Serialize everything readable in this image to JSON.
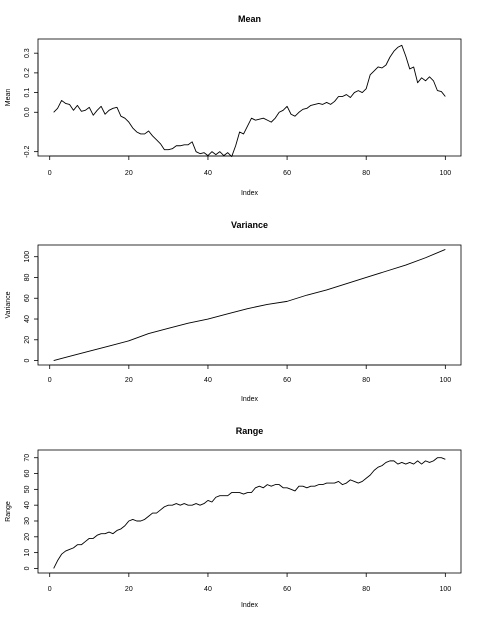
{
  "chart_data": [
    {
      "type": "line",
      "title": "Mean",
      "xlabel": "Index",
      "ylabel": "Mean",
      "xlim": [
        1,
        100
      ],
      "ylim": [
        -0.2,
        0.35
      ],
      "xticks": [
        0,
        20,
        40,
        60,
        80,
        100
      ],
      "yticks": [
        -0.2,
        0.0,
        0.1,
        0.2,
        0.3
      ],
      "ytick_labels": [
        "-0.2",
        "0.0",
        "0.1",
        "0.2",
        "0.3"
      ],
      "x": [
        1,
        2,
        3,
        4,
        5,
        6,
        7,
        8,
        9,
        10,
        11,
        12,
        13,
        14,
        15,
        16,
        17,
        18,
        19,
        20,
        21,
        22,
        23,
        24,
        25,
        26,
        27,
        28,
        29,
        30,
        31,
        32,
        33,
        34,
        35,
        36,
        37,
        38,
        39,
        40,
        41,
        42,
        43,
        44,
        45,
        46,
        47,
        48,
        49,
        50,
        51,
        52,
        53,
        54,
        55,
        56,
        57,
        58,
        59,
        60,
        61,
        62,
        63,
        64,
        65,
        66,
        67,
        68,
        69,
        70,
        71,
        72,
        73,
        74,
        75,
        76,
        77,
        78,
        79,
        80,
        81,
        82,
        83,
        84,
        85,
        86,
        87,
        88,
        89,
        90,
        91,
        92,
        93,
        94,
        95,
        96,
        97,
        98,
        99,
        100
      ],
      "y": [
        0.0,
        0.02,
        0.06,
        0.045,
        0.04,
        0.01,
        0.035,
        0.005,
        0.01,
        0.025,
        -0.015,
        0.01,
        0.03,
        -0.01,
        0.01,
        0.02,
        0.025,
        -0.02,
        -0.03,
        -0.05,
        -0.08,
        -0.1,
        -0.11,
        -0.11,
        -0.095,
        -0.12,
        -0.14,
        -0.16,
        -0.19,
        -0.19,
        -0.185,
        -0.17,
        -0.17,
        -0.165,
        -0.165,
        -0.15,
        -0.2,
        -0.21,
        -0.205,
        -0.22,
        -0.2,
        -0.215,
        -0.2,
        -0.22,
        -0.205,
        -0.225,
        -0.17,
        -0.1,
        -0.11,
        -0.07,
        -0.03,
        -0.04,
        -0.035,
        -0.03,
        -0.04,
        -0.05,
        -0.03,
        0.0,
        0.01,
        0.03,
        -0.01,
        -0.02,
        0.0,
        0.015,
        0.02,
        0.035,
        0.04,
        0.045,
        0.04,
        0.05,
        0.04,
        0.055,
        0.08,
        0.08,
        0.09,
        0.075,
        0.1,
        0.11,
        0.1,
        0.12,
        0.19,
        0.21,
        0.23,
        0.225,
        0.24,
        0.28,
        0.31,
        0.33,
        0.34,
        0.285,
        0.22,
        0.23,
        0.15,
        0.175,
        0.16,
        0.18,
        0.16,
        0.11,
        0.105,
        0.08
      ]
    },
    {
      "type": "line",
      "title": "Variance",
      "xlabel": "Index",
      "ylabel": "Variance",
      "xlim": [
        1,
        100
      ],
      "ylim": [
        0,
        107
      ],
      "xticks": [
        0,
        20,
        40,
        60,
        80,
        100
      ],
      "yticks": [
        0,
        20,
        40,
        60,
        80,
        100
      ],
      "ytick_labels": [
        "0",
        "20",
        "40",
        "60",
        "80",
        "100"
      ],
      "x": [
        1,
        3,
        6,
        10,
        15,
        20,
        25,
        30,
        35,
        40,
        45,
        50,
        55,
        60,
        65,
        70,
        75,
        80,
        85,
        90,
        95,
        100
      ],
      "y": [
        0,
        2,
        5,
        9,
        14,
        19,
        26,
        31,
        36,
        40,
        45,
        50,
        54,
        57,
        63,
        68,
        74,
        80,
        86,
        92,
        99,
        107
      ]
    },
    {
      "type": "line",
      "title": "Range",
      "xlabel": "Index",
      "ylabel": "Range",
      "xlim": [
        1,
        100
      ],
      "ylim": [
        0,
        72
      ],
      "xticks": [
        0,
        20,
        40,
        60,
        80,
        100
      ],
      "yticks": [
        0,
        10,
        20,
        30,
        40,
        50,
        60,
        70
      ],
      "ytick_labels": [
        "0",
        "10",
        "20",
        "30",
        "40",
        "50",
        "60",
        "70"
      ],
      "x": [
        1,
        2,
        3,
        4,
        5,
        6,
        7,
        8,
        9,
        10,
        11,
        12,
        13,
        14,
        15,
        16,
        17,
        18,
        19,
        20,
        21,
        22,
        23,
        24,
        25,
        26,
        27,
        28,
        29,
        30,
        31,
        32,
        33,
        34,
        35,
        36,
        37,
        38,
        39,
        40,
        41,
        42,
        43,
        44,
        45,
        46,
        47,
        48,
        49,
        50,
        51,
        52,
        53,
        54,
        55,
        56,
        57,
        58,
        59,
        60,
        61,
        62,
        63,
        64,
        65,
        66,
        67,
        68,
        69,
        70,
        71,
        72,
        73,
        74,
        75,
        76,
        77,
        78,
        79,
        80,
        81,
        82,
        83,
        84,
        85,
        86,
        87,
        88,
        89,
        90,
        91,
        92,
        93,
        94,
        95,
        96,
        97,
        98,
        99,
        100
      ],
      "y": [
        0,
        5,
        9,
        11,
        12,
        13,
        15,
        15,
        17,
        19,
        19,
        21,
        22,
        22,
        23,
        22,
        24,
        25,
        27,
        30,
        31,
        30,
        30,
        31,
        33,
        35,
        35,
        37,
        39,
        40,
        40,
        41,
        40,
        41,
        40,
        40,
        41,
        40,
        41,
        43,
        42,
        45,
        46,
        46,
        46,
        48,
        48,
        48,
        47,
        48,
        48,
        51,
        52,
        51,
        53,
        52,
        53,
        53,
        51,
        51,
        50,
        49,
        52,
        52,
        51,
        52,
        52,
        53,
        53,
        54,
        54,
        54,
        55,
        53,
        54,
        56,
        55,
        54,
        55,
        57,
        59,
        62,
        64,
        65,
        67,
        68,
        68,
        66,
        67,
        66,
        67,
        66,
        68,
        66,
        68,
        67,
        68,
        70,
        70,
        69
      ]
    }
  ]
}
